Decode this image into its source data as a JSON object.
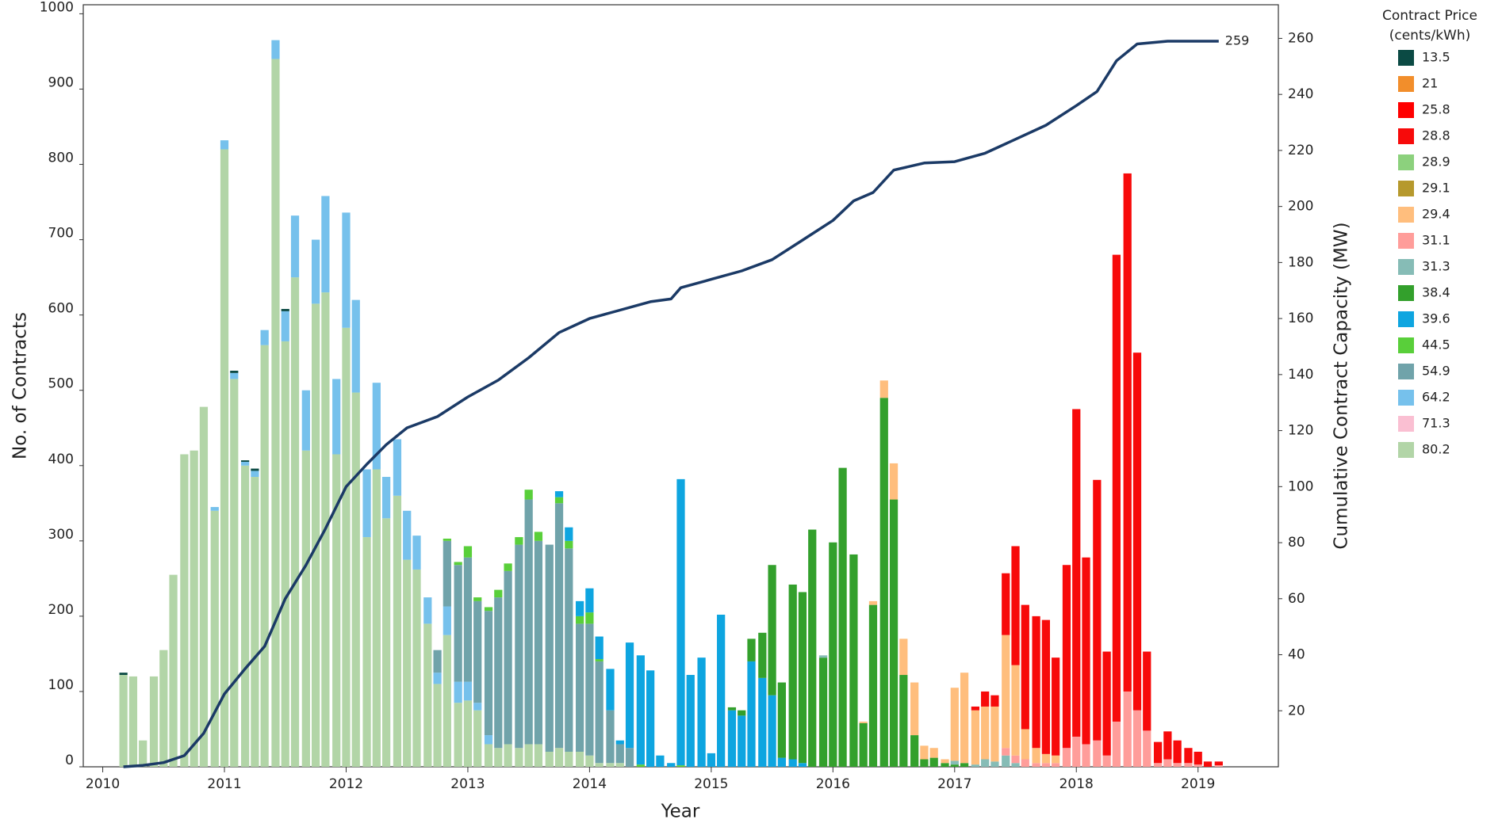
{
  "chart_data": {
    "type": "bar",
    "x_label": "Year",
    "y_label": "No. of Contracts",
    "y2_label": "Cumulative Contract Capacity (MW)",
    "legend_title": [
      "Contract Price",
      "(cents/kWh)"
    ],
    "legend": "right",
    "xlim": [
      2009.84,
      2019.66
    ],
    "xticks": [
      2010,
      2011,
      2012,
      2013,
      2014,
      2015,
      2016,
      2017,
      2018,
      2019
    ],
    "ylim": [
      0,
      1012
    ],
    "yticks": [
      0,
      100,
      200,
      300,
      400,
      500,
      600,
      700,
      800,
      900,
      1000
    ],
    "y2lim": [
      0,
      272
    ],
    "y2ticks": [
      20,
      40,
      60,
      80,
      100,
      120,
      140,
      160,
      180,
      200,
      220,
      240,
      260
    ],
    "grid": false,
    "series": [
      {
        "name": "13.5",
        "color": "#0b4a44",
        "x": [
          2010.17,
          2011.08,
          2011.17,
          2011.25,
          2011.5
        ],
        "values": [
          3,
          3,
          2,
          3,
          3
        ]
      },
      {
        "name": "21",
        "color": "#f28e2b",
        "x": [],
        "values": []
      },
      {
        "name": "25.8",
        "color": "#ff0000",
        "x": [],
        "values": []
      },
      {
        "name": "28.8",
        "color": "#f70a0a",
        "x": [
          2017.17,
          2017.25,
          2017.33,
          2017.42,
          2017.5,
          2017.58,
          2017.67,
          2017.75,
          2017.83,
          2017.92,
          2018,
          2018.08,
          2018.17,
          2018.25,
          2018.33,
          2018.42,
          2018.5,
          2018.58,
          2018.67,
          2018.75,
          2018.83,
          2018.92,
          2019,
          2019.08,
          2019.17
        ],
        "values": [
          5,
          20,
          15,
          82,
          158,
          165,
          175,
          178,
          130,
          243,
          435,
          248,
          346,
          138,
          620,
          688,
          475,
          105,
          28,
          37,
          30,
          20,
          17,
          7,
          5
        ]
      },
      {
        "name": "28.9",
        "color": "#8cd17d",
        "x": [],
        "values": []
      },
      {
        "name": "29.1",
        "color": "#b6992d",
        "x": [],
        "values": []
      },
      {
        "name": "29.4",
        "color": "#ffbe7d",
        "x": [
          2016.25,
          2016.33,
          2016.42,
          2016.5,
          2016.58,
          2016.67,
          2016.75,
          2016.83,
          2016.92,
          2017,
          2017.08,
          2017.17,
          2017.25,
          2017.33,
          2017.42,
          2017.5,
          2017.58,
          2017.67,
          2017.75,
          2017.83
        ],
        "values": [
          2,
          5,
          23,
          48,
          48,
          70,
          18,
          13,
          5,
          97,
          120,
          72,
          70,
          73,
          150,
          120,
          40,
          20,
          12,
          10
        ]
      },
      {
        "name": "31.1",
        "color": "#ff9d9a",
        "x": [
          2017.42,
          2017.5,
          2017.58,
          2017.67,
          2017.75,
          2017.83,
          2017.92,
          2018,
          2018.08,
          2018.17,
          2018.25,
          2018.33,
          2018.42,
          2018.5,
          2018.58,
          2018.67,
          2018.75,
          2018.83,
          2018.92,
          2019,
          2019.17
        ],
        "values": [
          10,
          10,
          10,
          5,
          5,
          5,
          25,
          40,
          30,
          35,
          15,
          60,
          100,
          75,
          48,
          5,
          10,
          5,
          5,
          3,
          2
        ]
      },
      {
        "name": "31.3",
        "color": "#86bcb6",
        "x": [
          2015.92,
          2017,
          2017.17,
          2017.25,
          2017.33,
          2017.42,
          2017.5
        ],
        "values": [
          3,
          5,
          3,
          10,
          7,
          15,
          5
        ]
      },
      {
        "name": "38.4",
        "color": "#33a02c",
        "x": [
          2015.17,
          2015.25,
          2015.33,
          2015.42,
          2015.5,
          2015.58,
          2015.67,
          2015.75,
          2015.83,
          2015.92,
          2016,
          2016.08,
          2016.17,
          2016.25,
          2016.33,
          2016.42,
          2016.5,
          2016.58,
          2016.67,
          2016.75,
          2016.83,
          2016.92,
          2017,
          2017.08
        ],
        "values": [
          4,
          7,
          30,
          60,
          173,
          100,
          232,
          227,
          315,
          145,
          298,
          397,
          282,
          58,
          215,
          490,
          355,
          122,
          42,
          10,
          12,
          5,
          3,
          5
        ]
      },
      {
        "name": "39.6",
        "color": "#0ea5e0",
        "x": [
          2013.75,
          2013.83,
          2013.92,
          2014,
          2014.08,
          2014.17,
          2014.25,
          2014.33,
          2014.42,
          2014.5,
          2014.58,
          2014.67,
          2014.75,
          2014.83,
          2014.92,
          2015,
          2015.08,
          2015.17,
          2015.25,
          2015.33,
          2015.42,
          2015.5,
          2015.58,
          2015.67,
          2015.75
        ],
        "values": [
          8,
          18,
          20,
          32,
          30,
          55,
          5,
          140,
          145,
          128,
          15,
          5,
          380,
          122,
          145,
          18,
          202,
          75,
          68,
          140,
          118,
          95,
          12,
          10,
          5
        ]
      },
      {
        "name": "44.5",
        "color": "#59cf3a",
        "x": [
          2012.83,
          2012.92,
          2013,
          2013.08,
          2013.17,
          2013.25,
          2013.33,
          2013.42,
          2013.5,
          2013.58,
          2013.75,
          2013.83,
          2013.92,
          2014,
          2014.08,
          2014.42,
          2014.75
        ],
        "values": [
          3,
          4,
          15,
          5,
          5,
          10,
          10,
          10,
          13,
          12,
          8,
          10,
          10,
          15,
          3,
          3,
          2
        ]
      },
      {
        "name": "54.9",
        "color": "#70a3aa",
        "x": [
          2012.75,
          2012.83,
          2012.92,
          2013,
          2013.08,
          2013.17,
          2013.25,
          2013.33,
          2013.42,
          2013.5,
          2013.58,
          2013.67,
          2013.75,
          2013.83,
          2013.92,
          2014,
          2014.08,
          2014.17,
          2014.25,
          2014.33
        ],
        "values": [
          30,
          87,
          155,
          165,
          135,
          165,
          200,
          230,
          270,
          325,
          270,
          275,
          325,
          270,
          170,
          175,
          135,
          70,
          25,
          25
        ]
      },
      {
        "name": "64.2",
        "color": "#76c1ec",
        "x": [
          2010.92,
          2011,
          2011.08,
          2011.17,
          2011.25,
          2011.33,
          2011.42,
          2011.5,
          2011.58,
          2011.67,
          2011.75,
          2011.83,
          2011.92,
          2012,
          2012.08,
          2012.17,
          2012.25,
          2012.33,
          2012.42,
          2012.5,
          2012.58,
          2012.67,
          2012.75,
          2012.83,
          2012.92,
          2013,
          2013.08,
          2013.17
        ],
        "values": [
          5,
          12,
          8,
          5,
          8,
          20,
          25,
          40,
          82,
          80,
          85,
          128,
          100,
          153,
          123,
          90,
          115,
          55,
          75,
          65,
          45,
          35,
          15,
          38,
          28,
          25,
          10,
          12
        ]
      },
      {
        "name": "71.3",
        "color": "#fabfd2",
        "x": [],
        "values": []
      },
      {
        "name": "80.2",
        "color": "#b2d5a7",
        "x": [
          2010.17,
          2010.25,
          2010.33,
          2010.42,
          2010.5,
          2010.58,
          2010.67,
          2010.75,
          2010.83,
          2010.92,
          2011,
          2011.08,
          2011.17,
          2011.25,
          2011.33,
          2011.42,
          2011.5,
          2011.58,
          2011.67,
          2011.75,
          2011.83,
          2011.92,
          2012,
          2012.08,
          2012.17,
          2012.25,
          2012.33,
          2012.42,
          2012.5,
          2012.58,
          2012.67,
          2012.75,
          2012.83,
          2012.92,
          2013,
          2013.08,
          2013.17,
          2013.25,
          2013.33,
          2013.42,
          2013.5,
          2013.58,
          2013.67,
          2013.75,
          2013.83,
          2013.92,
          2014,
          2014.08,
          2014.17,
          2014.25
        ],
        "values": [
          122,
          120,
          35,
          120,
          155,
          255,
          415,
          420,
          478,
          340,
          820,
          515,
          400,
          385,
          560,
          940,
          565,
          650,
          420,
          615,
          630,
          415,
          583,
          497,
          305,
          395,
          330,
          360,
          275,
          262,
          190,
          110,
          175,
          85,
          88,
          75,
          30,
          25,
          30,
          25,
          30,
          30,
          20,
          25,
          20,
          20,
          15,
          5,
          5,
          5
        ]
      },
      {
        "type": "line",
        "axis": "y2",
        "color": "#1b3a66",
        "x": [
          2010.17,
          2010.33,
          2010.5,
          2010.67,
          2010.83,
          2011,
          2011.17,
          2011.33,
          2011.5,
          2011.67,
          2011.83,
          2012,
          2012.17,
          2012.33,
          2012.5,
          2012.75,
          2013,
          2013.25,
          2013.5,
          2013.75,
          2014,
          2014.25,
          2014.5,
          2014.67,
          2014.75,
          2015,
          2015.25,
          2015.5,
          2015.75,
          2016,
          2016.17,
          2016.33,
          2016.5,
          2016.75,
          2017,
          2017.25,
          2017.5,
          2017.75,
          2018,
          2018.17,
          2018.33,
          2018.5,
          2018.75,
          2019.17
        ],
        "values": [
          0,
          0.5,
          1.5,
          4,
          12,
          26,
          35,
          43,
          60,
          72,
          85,
          100,
          108,
          115,
          121,
          125,
          132,
          138,
          146,
          155,
          160,
          163,
          166,
          167,
          171,
          174,
          177,
          181,
          188,
          195,
          202,
          205,
          213,
          215.5,
          216,
          219,
          224,
          229,
          236,
          241,
          252,
          258,
          259,
          259
        ]
      }
    ]
  }
}
